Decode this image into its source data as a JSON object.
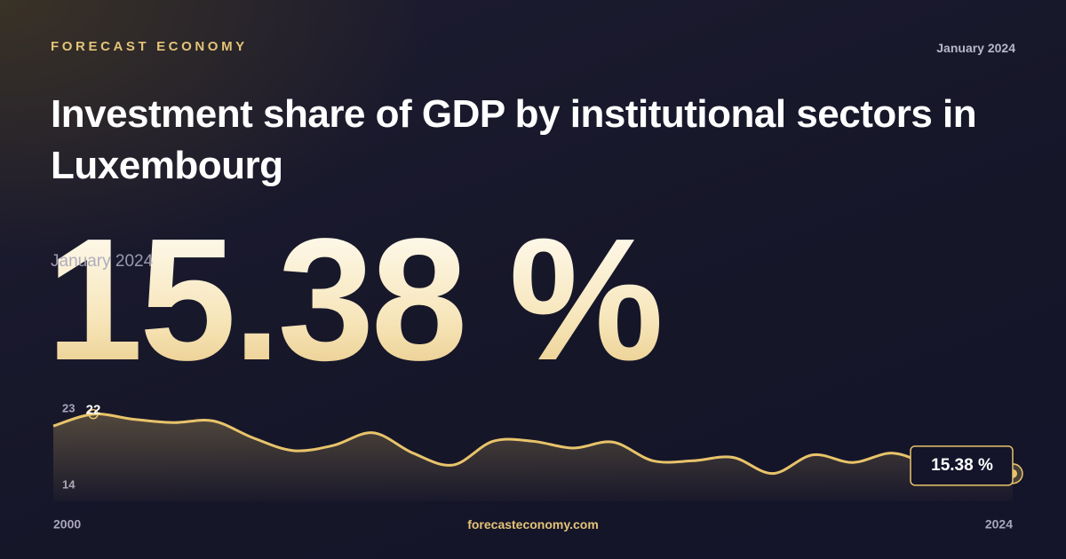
{
  "brand": "FORECAST ECONOMY",
  "date": "January 2024",
  "footer": "forecasteconomy.com",
  "chart_data": {
    "type": "area",
    "title": "Investment share of GDP by institutional sectors in Luxembourg",
    "x": [
      2000,
      2001,
      2002,
      2003,
      2004,
      2005,
      2006,
      2007,
      2008,
      2009,
      2010,
      2011,
      2012,
      2013,
      2014,
      2015,
      2016,
      2017,
      2018,
      2019,
      2020,
      2021,
      2022,
      2023,
      2024
    ],
    "values": [
      21.0,
      22.4,
      21.8,
      21.4,
      21.6,
      19.6,
      18.1,
      18.7,
      20.2,
      17.8,
      16.4,
      19.2,
      19.2,
      18.4,
      19.1,
      16.9,
      16.9,
      17.3,
      15.4,
      17.6,
      16.7,
      17.8,
      16.3,
      15.6,
      15.38
    ],
    "value_labels": [
      null,
      "22",
      null,
      null,
      null,
      null,
      null,
      null,
      null,
      null,
      null,
      null,
      null,
      null,
      null,
      null,
      null,
      null,
      null,
      null,
      null,
      null,
      null,
      null,
      "15.38 %"
    ],
    "color": "#e8c46a",
    "xlim": [
      2000,
      2024
    ],
    "xticks": [
      2000,
      2024
    ],
    "ylim": [
      14,
      23
    ],
    "yticks": [
      14,
      23
    ],
    "grid": false
  }
}
